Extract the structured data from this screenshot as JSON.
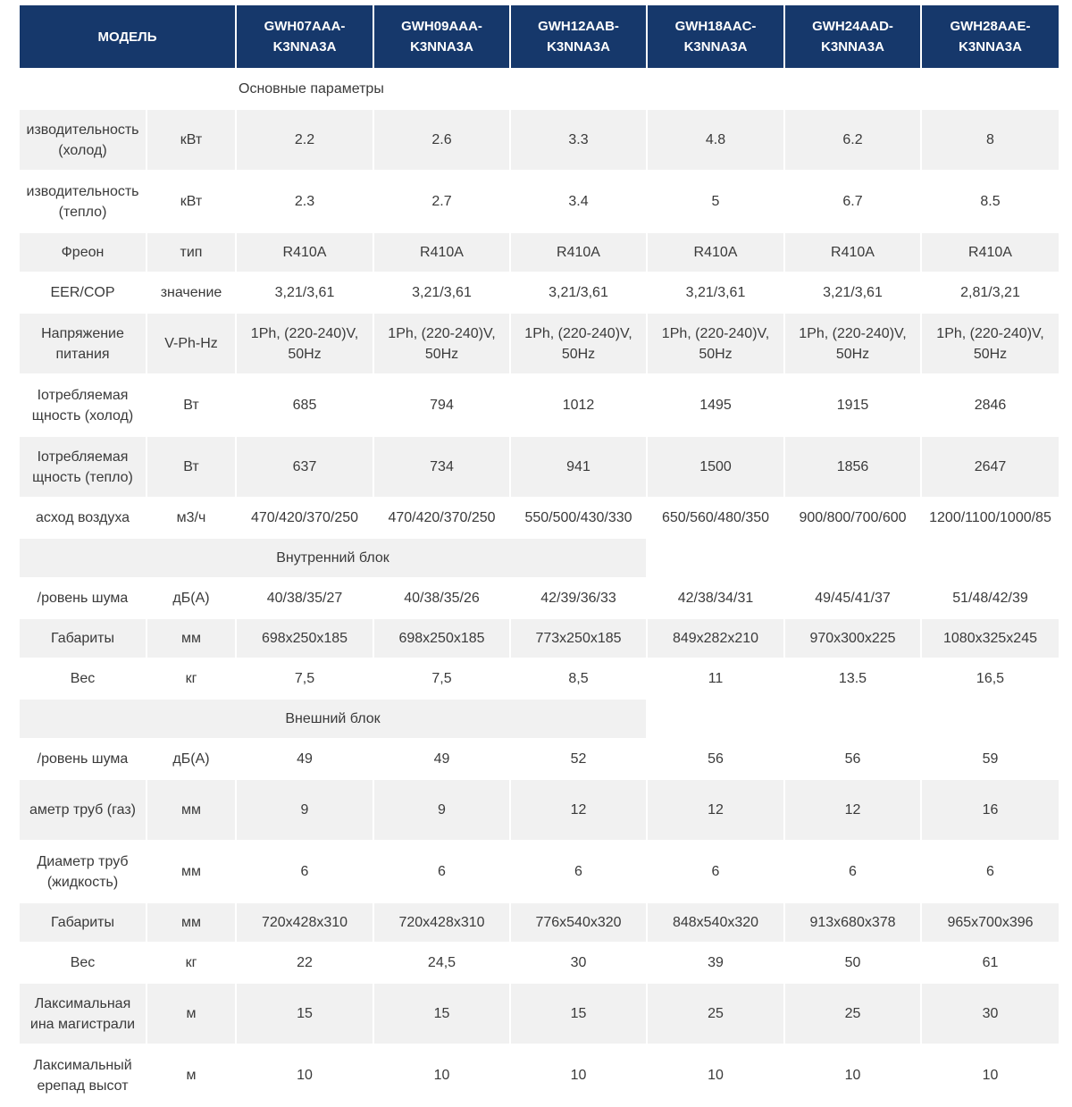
{
  "table": {
    "header": [
      "МОДЕЛЬ",
      "GWH07AAA-K3NNA3A",
      "GWH09AAA-K3NNA3A",
      "GWH12AAB-K3NNA3A",
      "GWH18AAC-K3NNA3A",
      "GWH24AAD-K3NNA3A",
      "GWH28AAE-K3NNA3A"
    ],
    "sections": [
      {
        "title": "Основные параметры",
        "rows": [
          [
            "изводительность (холод)",
            "кВт",
            "2.2",
            "2.6",
            "3.3",
            "4.8",
            "6.2",
            "8"
          ],
          [
            "изводительность (тепло)",
            "кВт",
            "2.3",
            "2.7",
            "3.4",
            "5",
            "6.7",
            "8.5"
          ],
          [
            "Фреон",
            "тип",
            "R410A",
            "R410A",
            "R410A",
            "R410A",
            "R410A",
            "R410A"
          ],
          [
            "EER/COP",
            "значение",
            "3,21/3,61",
            "3,21/3,61",
            "3,21/3,61",
            "3,21/3,61",
            "3,21/3,61",
            "2,81/3,21"
          ],
          [
            "Напряжение питания",
            "V-Ph-Hz",
            "1Ph, (220-240)V, 50Hz",
            "1Ph, (220-240)V, 50Hz",
            "1Ph, (220-240)V, 50Hz",
            "1Ph, (220-240)V, 50Hz",
            "1Ph, (220-240)V, 50Hz",
            "1Ph, (220-240)V, 50Hz"
          ],
          [
            "Іотребляемая щность (холод)",
            "Вт",
            "685",
            "794",
            "1012",
            "1495",
            "1915",
            "2846"
          ],
          [
            "Іотребляемая щность (тепло)",
            "Вт",
            "637",
            "734",
            "941",
            "1500",
            "1856",
            "2647"
          ],
          [
            "асход воздуха",
            "м3/ч",
            "470/420/370/250",
            "470/420/370/250",
            "550/500/430/330",
            "650/560/480/350",
            "900/800/700/600",
            "1200/1100/1000/85"
          ]
        ]
      },
      {
        "title": "Внутренний блок",
        "rows": [
          [
            "/ровень шума",
            "дБ(А)",
            "40/38/35/27",
            "40/38/35/26",
            "42/39/36/33",
            "42/38/34/31",
            "49/45/41/37",
            "51/48/42/39"
          ],
          [
            "Габариты",
            "мм",
            "698x250x185",
            "698x250x185",
            "773x250x185",
            "849x282x210",
            "970x300x225",
            "1080x325x245"
          ],
          [
            "Вес",
            "кг",
            "7,5",
            "7,5",
            "8,5",
            "11",
            "13.5",
            "16,5"
          ]
        ]
      },
      {
        "title": "Внешний блок",
        "rows": [
          [
            "/ровень шума",
            "дБ(А)",
            "49",
            "49",
            "52",
            "56",
            "56",
            "59"
          ],
          [
            "аметр труб (газ)",
            "мм",
            "9",
            "9",
            "12",
            "12",
            "12",
            "16"
          ],
          [
            "Диаметр труб (жидкость)",
            "мм",
            "6",
            "6",
            "6",
            "6",
            "6",
            "6"
          ],
          [
            "Габариты",
            "мм",
            "720x428x310",
            "720x428x310",
            "776x540x320",
            "848x540x320",
            "913x680x378",
            "965x700x396"
          ],
          [
            "Вес",
            "кг",
            "22",
            "24,5",
            "30",
            "39",
            "50",
            "61"
          ],
          [
            "Лаксимальная ина магистрали",
            "м",
            "15",
            "15",
            "15",
            "25",
            "25",
            "30"
          ],
          [
            "Лаксимальный ерепад высот",
            "м",
            "10",
            "10",
            "10",
            "10",
            "10",
            "10"
          ]
        ]
      }
    ]
  }
}
